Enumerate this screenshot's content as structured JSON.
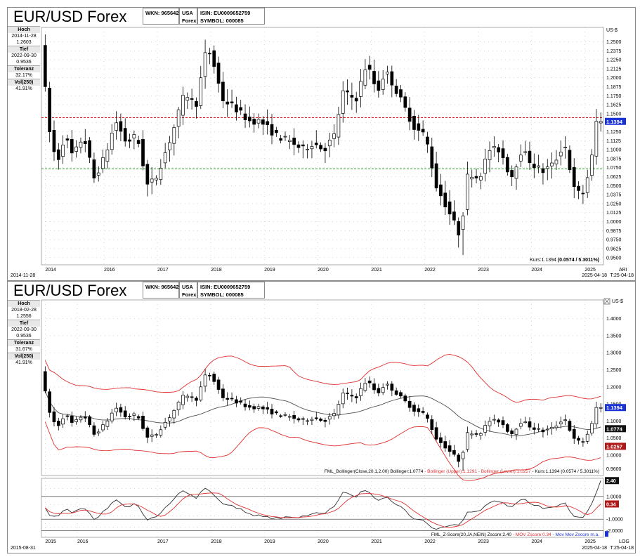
{
  "panels": [
    {
      "title": "EUR/USD Forex",
      "hdr": {
        "wkn": "WKN: 965642",
        "usa": "USA",
        "forex": "Forex",
        "isin": "ISIN: EU0009652759",
        "symbol": "SYMBOL: 000085"
      },
      "side": {
        "hoch_label": "Hoch",
        "hoch_date": "2014-11-28",
        "hoch_value": "1.2603",
        "tief_label": "Tief",
        "tief_date": "2022-09-30",
        "tief_value": "0.9536",
        "toleranz_label": "Toleranz",
        "toleranz_value": "32.17%",
        "vol_label": "Vol(250)",
        "vol_value": "41.91%"
      },
      "status_left": "2014-11-28",
      "status_right": "2025-04-18",
      "status_far_right": "T:25-04-18",
      "corner_label": "ARI"
    },
    {
      "title": "EUR/USD Forex",
      "hdr": {
        "wkn": "WKN: 965642",
        "usa": "USA",
        "forex": "Forex",
        "isin": "ISIN: EU0009652759",
        "symbol": "SYMBOL: 000085"
      },
      "side": {
        "hoch_label": "Hoch",
        "hoch_date": "2018-02-28",
        "hoch_value": "1.2556",
        "tief_label": "Tief",
        "tief_date": "2022-09-30",
        "tief_value": "0.9536",
        "toleranz_label": "Toleranz",
        "toleranz_value": "31.67%",
        "vol_label": "Vol(250)",
        "vol_value": "41.91%"
      },
      "status_left": "2015-08-31",
      "status_right": "2025-04-18",
      "status_far_right": "T:25-04-18",
      "corner_label": "LOG"
    }
  ],
  "colors": {
    "up": "#ffffff",
    "down": "#000000",
    "red_line": "#e02020",
    "green_line": "#20a020",
    "bb_band": "#e03030",
    "bb_mid": "#505050",
    "price_tag": "#1a33d6",
    "mid_tag": "#111111",
    "low_tag": "#b01818",
    "z_line": "#303030",
    "z_ma": "#e03030"
  },
  "chart_data": [
    {
      "type": "candlestick",
      "unit": "US-$",
      "ylim": [
        0.94,
        1.27
      ],
      "yticks": [
        "1.2500",
        "1.2375",
        "1.2250",
        "1.2125",
        "1.2000",
        "1.1875",
        "1.1750",
        "1.1625",
        "1.1500",
        "1.1375",
        "1.1250",
        "1.1125",
        "1.1000",
        "1.0875",
        "1.0750",
        "1.0625",
        "1.0500",
        "1.0375",
        "1.0250",
        "1.0125",
        "1.0000",
        "0.9875",
        "0.9750",
        "0.9625",
        "0.9500"
      ],
      "ytick_values": [
        1.25,
        1.2375,
        1.225,
        1.2125,
        1.2,
        1.1875,
        1.175,
        1.1625,
        1.15,
        1.1375,
        1.125,
        1.1125,
        1.1,
        1.0875,
        1.075,
        1.0625,
        1.05,
        1.0375,
        1.025,
        1.0125,
        1.0,
        0.9875,
        0.975,
        0.9625,
        0.95
      ],
      "xtick_labels": [
        "2014",
        "2016",
        "2017",
        "2018",
        "2019",
        "2020",
        "2021",
        "2022",
        "2023",
        "2024",
        "2025"
      ],
      "xtick_positions": [
        2014.9,
        2016.0,
        2017.0,
        2018.0,
        2019.0,
        2020.0,
        2021.0,
        2022.0,
        2023.0,
        2024.0,
        2025.0
      ],
      "xlim": [
        2014.83,
        2025.35
      ],
      "hlines": [
        {
          "y": 1.1445,
          "color": "red"
        },
        {
          "y": 1.0735,
          "color": "green"
        }
      ],
      "last_price_tag": "1.1394",
      "last_price": 1.1394,
      "kurs_label": "Kurs:",
      "kurs_value": "1.1394",
      "kurs_change": "(0.0574 / 5.3011%)"
    },
    {
      "type": "candlestick+bollinger",
      "unit": "US-$",
      "ylim": [
        0.94,
        1.455
      ],
      "yticks": [
        "1.4000",
        "1.3500",
        "1.3000",
        "1.2500",
        "1.2000",
        "1.1500",
        "1.1000",
        "1.0500",
        "1.0000",
        "0.9600"
      ],
      "ytick_values": [
        1.4,
        1.35,
        1.3,
        1.25,
        1.2,
        1.15,
        1.1,
        1.05,
        1.0,
        0.96
      ],
      "xtick_labels": [
        "2015",
        "2016",
        "2017",
        "2018",
        "2019",
        "2020",
        "2021",
        "2022",
        "2023",
        "2024",
        "2025"
      ],
      "xtick_positions": [
        2014.9,
        2015.5,
        2017.0,
        2018.0,
        2019.0,
        2020.0,
        2021.0,
        2022.0,
        2023.0,
        2024.0,
        2025.0
      ],
      "xlim": [
        2014.83,
        2025.35
      ],
      "tags": [
        {
          "text": "1.1394",
          "y": 1.1394,
          "kind": "price"
        },
        {
          "text": "1.0774",
          "y": 1.0774,
          "kind": "mid"
        },
        {
          "text": "1.0257",
          "y": 1.0257,
          "kind": "low"
        }
      ],
      "legend_parts": [
        {
          "text": "FML_Bollinger(Close,20,1,2.00) Bollinger:1.0774",
          "color": "#000000"
        },
        {
          "text": "- Bollinger (Upper):1.1291",
          "color": "#e03030"
        },
        {
          "text": "- Bollinger (Lower):1.0257",
          "color": "#e03030"
        },
        {
          "text": "- Kurs:1.1394 (0.0574 / 5.3011%)",
          "color": "#000000"
        }
      ]
    },
    {
      "type": "line",
      "ylim": [
        -2.6,
        2.6
      ],
      "yticks": [
        "1.0000",
        "-1.0000",
        "-2.0000"
      ],
      "ytick_values": [
        1.0,
        -1.0,
        -2.0
      ],
      "xlim": [
        2014.83,
        2025.35
      ],
      "tags": [
        {
          "text": "2.40",
          "y": 2.4,
          "kind": "z"
        },
        {
          "text": "0.34",
          "y": 0.34,
          "kind": "ma"
        }
      ],
      "legend_parts": [
        {
          "text": "FML_Z-Score(20,JA,NEIN) Zscore:2.40",
          "color": "#000000"
        },
        {
          "text": "- MOV Zscore:0.34",
          "color": "#e03030"
        },
        {
          "text": "- Mov Mov Zscore m.a.",
          "color": "#1a33d6"
        }
      ]
    }
  ]
}
